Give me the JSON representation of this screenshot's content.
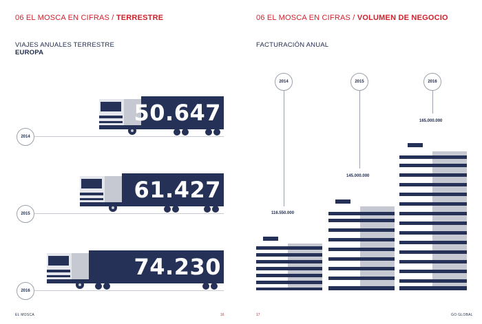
{
  "left": {
    "section_prefix": "06 EL MOSCA EN CIFRAS / ",
    "section_bold": "TERRESTRE",
    "subtitle": "VIAJES ANUALES TERRESTRE",
    "subtitle_bold": "EUROPA",
    "trucks": [
      {
        "year": "2014",
        "value": "50.647"
      },
      {
        "year": "2015",
        "value": "61.427"
      },
      {
        "year": "2016",
        "value": "74.230"
      }
    ],
    "footer": "EL MOSCA",
    "page_number": "16"
  },
  "right": {
    "section_prefix": "06 EL MOSCA EN CIFRAS / ",
    "section_bold": "VOLUMEN DE NEGOCIO",
    "subtitle": "FACTURACIÓN ANUAL",
    "buildings": [
      {
        "year": "2014",
        "amount": "116.550.000"
      },
      {
        "year": "2015",
        "amount": "145.000.000"
      },
      {
        "year": "2016",
        "amount": "165.000.000"
      }
    ],
    "footer": "GO GLOBAL",
    "page_number": "17"
  },
  "colors": {
    "navy": "#253156",
    "red": "#d11f2a",
    "grey": "#c7c9d2"
  }
}
